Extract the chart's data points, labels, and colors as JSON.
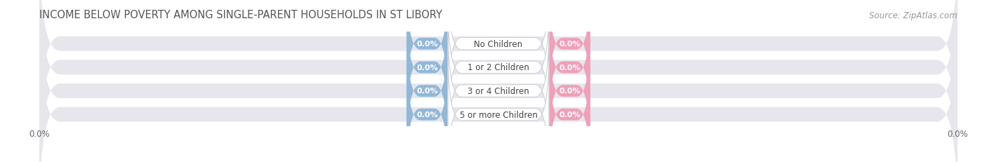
{
  "title": "INCOME BELOW POVERTY AMONG SINGLE-PARENT HOUSEHOLDS IN ST LIBORY",
  "source": "Source: ZipAtlas.com",
  "categories": [
    "No Children",
    "1 or 2 Children",
    "3 or 4 Children",
    "5 or more Children"
  ],
  "single_father_values": [
    0.0,
    0.0,
    0.0,
    0.0
  ],
  "single_mother_values": [
    0.0,
    0.0,
    0.0,
    0.0
  ],
  "father_color": "#92b8d8",
  "mother_color": "#f0a0b8",
  "bar_bg_color": "#e6e6ec",
  "x_tick_label_left": "0.0%",
  "x_tick_label_right": "0.0%",
  "title_fontsize": 10.5,
  "source_fontsize": 8.5,
  "bar_height": 0.62,
  "background_color": "#ffffff",
  "center_label_color": "#444444",
  "value_text_color": "#ffffff",
  "value_fontsize": 8,
  "cat_fontsize": 8.5,
  "tick_fontsize": 8.5,
  "legend_fontsize": 9
}
